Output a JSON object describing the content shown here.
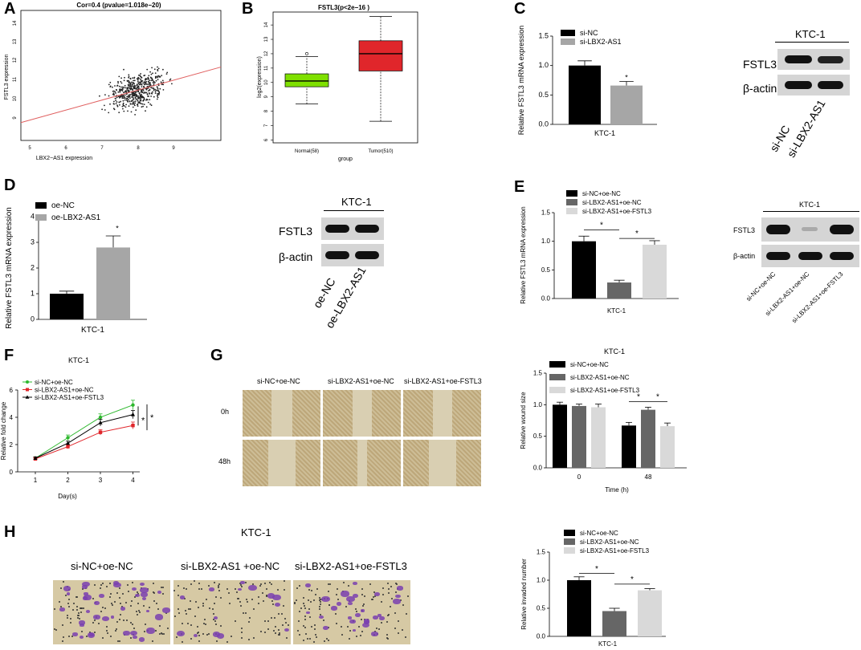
{
  "panels": {
    "A": "A",
    "B": "B",
    "C": "C",
    "D": "D",
    "E": "E",
    "F": "F",
    "G": "G",
    "H": "H"
  },
  "panelA": {
    "title": "Cor=0.4 (pvalue=1.018e−20)",
    "xlabel": "LBX2−AS1 expression",
    "ylabel": "FSTL3 expression",
    "xticks": [
      "5",
      "6",
      "7",
      "8",
      "9"
    ],
    "yticks": [
      "9",
      "10",
      "11",
      "12",
      "13",
      "14"
    ]
  },
  "panelB": {
    "title": "FSTL3(p<2e−16 )",
    "xlabel": "group",
    "ylabel": "log2(expression)",
    "xticks": [
      "Normal(58)",
      "Tumor(510)"
    ],
    "yticks": [
      "6",
      "7",
      "8",
      "9",
      "10",
      "11",
      "12",
      "13",
      "14"
    ]
  },
  "panelC": {
    "ylabel": "Relative FSTL3 mRNA expression",
    "xlabel": "KTC-1",
    "legend": [
      "si-NC",
      "si-LBX2-AS1"
    ],
    "yticks": [
      "0.0",
      "0.5",
      "1.0",
      "1.5"
    ],
    "star": "*",
    "blot": {
      "title": "KTC-1",
      "rows": [
        "FSTL3",
        "β-actin"
      ],
      "lanes": [
        "si-NC",
        "si-LBX2-AS1"
      ]
    }
  },
  "panelD": {
    "ylabel": "Relative FSTL3 mRNA expression",
    "xlabel": "KTC-1",
    "legend": [
      "oe-NC",
      "oe-LBX2-AS1"
    ],
    "yticks": [
      "0",
      "1",
      "2",
      "3",
      "4"
    ],
    "star": "*",
    "blot": {
      "title": "KTC-1",
      "rows": [
        "FSTL3",
        "β-actin"
      ],
      "lanes": [
        "oe-NC",
        "oe-LBX2-AS1"
      ]
    }
  },
  "panelE": {
    "ylabel": "Relative FSTL3 mRNA expression",
    "xlabel": "KTC-1",
    "legend": [
      "si-NC+oe-NC",
      "si-LBX2-AS1+oe-NC",
      "si-LBX2-AS1+oe-FSTL3"
    ],
    "yticks": [
      "0.0",
      "0.5",
      "1.0",
      "1.5"
    ],
    "stars": [
      "*",
      "*"
    ],
    "blot": {
      "title": "KTC-1",
      "rows": [
        "FSTL3",
        "β-actin"
      ],
      "lanes": [
        "si-NC+oe-NC",
        "si-LBX2-AS1+oe-NC",
        "si-LBX2-AS1+oe-FSTL3"
      ]
    }
  },
  "panelF": {
    "title": "KTC-1",
    "ylabel": "Relative fold change",
    "xlabel": "Day(s)",
    "legend": [
      "si-NC+oe-NC",
      "si-LBX2-AS1+oe-NC",
      "si-LBX2-AS1+oe-FSTL3"
    ],
    "xticks": [
      "1",
      "2",
      "3",
      "4"
    ],
    "yticks": [
      "0",
      "2",
      "4",
      "6"
    ],
    "stars": [
      "*",
      "*"
    ]
  },
  "panelG": {
    "columns": [
      "si-NC+oe-NC",
      "si-LBX2-AS1+oe-NC",
      "si-LBX2-AS1+oe-FSTL3"
    ],
    "rows": [
      "0h",
      "48h"
    ],
    "chart_title": "KTC-1",
    "ylabel": "Relative wound size",
    "xlabel": "Time (h)",
    "legend": [
      "si-NC+oe-NC",
      "si-LBX2-AS1+oe-NC",
      "si-LBX2-AS1+oe-FSTL3"
    ],
    "xticks": [
      "0",
      "48"
    ],
    "yticks": [
      "0.0",
      "0.5",
      "1.0",
      "1.5"
    ],
    "stars": [
      "*",
      "*"
    ]
  },
  "panelH": {
    "title": "KTC-1",
    "columns": [
      "si-NC+oe-NC",
      "si-LBX2-AS1 +oe-NC",
      "si-LBX2-AS1+oe-FSTL3"
    ],
    "ylabel": "Relative invaded number",
    "xlabel": "KTC-1",
    "legend": [
      "si-NC+oe-NC",
      "si-LBX2-AS1+oe-NC",
      "si-LBX2-AS1+oe-FSTL3"
    ],
    "yticks": [
      "0.0",
      "0.5",
      "1.0",
      "1.5"
    ],
    "stars": [
      "*",
      "*"
    ]
  },
  "colors": {
    "black": "#000000",
    "dark_gray": "#666666",
    "gray": "#a6a6a6",
    "light_gray": "#d9d9d9",
    "green": "#7fe000",
    "red": "#e0262b",
    "regression": "#e06060",
    "photo_bg": "#c9b992",
    "crystal_violet": "#7a3fb0"
  },
  "chart_data": [
    {
      "panel": "A",
      "type": "scatter",
      "title": "Cor=0.4 (pvalue=1.018e−20)",
      "xlabel": "LBX2−AS1 expression",
      "ylabel": "FSTL3 expression",
      "xlim": [
        4.3,
        9.9
      ],
      "ylim": [
        8.6,
        14.8
      ],
      "regression": {
        "x": [
          4.3,
          9.9
        ],
        "y": [
          9.45,
          12.1
        ]
      }
    },
    {
      "panel": "B",
      "type": "box",
      "title": "FSTL3(p<2e−16 )",
      "xlabel": "group",
      "ylabel": "log2(expression)",
      "categories": [
        "Normal(58)",
        "Tumor(510)"
      ],
      "ylim": [
        5.8,
        14.9
      ],
      "boxes": [
        {
          "whisker_low": 8.5,
          "q1": 9.7,
          "median": 10.1,
          "q3": 10.6,
          "whisker_high": 11.8,
          "outliers": [
            12.0
          ]
        },
        {
          "whisker_low": 7.3,
          "q1": 10.8,
          "median": 12.0,
          "q3": 12.9,
          "whisker_high": 14.6,
          "outliers": []
        }
      ]
    },
    {
      "panel": "C",
      "type": "bar",
      "categories": [
        "KTC-1"
      ],
      "series": [
        {
          "name": "si-NC",
          "values": [
            1.0
          ],
          "error": [
            0.08
          ]
        },
        {
          "name": "si-LBX2-AS1",
          "values": [
            0.66
          ],
          "error": [
            0.07
          ]
        }
      ],
      "ylim": [
        0,
        1.5
      ]
    },
    {
      "panel": "D",
      "type": "bar",
      "categories": [
        "KTC-1"
      ],
      "series": [
        {
          "name": "oe-NC",
          "values": [
            1.0
          ],
          "error": [
            0.1
          ]
        },
        {
          "name": "oe-LBX2-AS1",
          "values": [
            2.8
          ],
          "error": [
            0.45
          ]
        }
      ],
      "ylim": [
        0,
        4
      ]
    },
    {
      "panel": "E",
      "type": "bar",
      "categories": [
        "KTC-1"
      ],
      "series": [
        {
          "name": "si-NC+oe-NC",
          "values": [
            1.0
          ],
          "error": [
            0.09
          ]
        },
        {
          "name": "si-LBX2-AS1+oe-NC",
          "values": [
            0.28
          ],
          "error": [
            0.04
          ]
        },
        {
          "name": "si-LBX2-AS1+oe-FSTL3",
          "values": [
            0.94
          ],
          "error": [
            0.07
          ]
        }
      ],
      "ylim": [
        0,
        1.5
      ]
    },
    {
      "panel": "F",
      "type": "line",
      "title": "KTC-1",
      "xlabel": "Day(s)",
      "ylabel": "Relative fold change",
      "x": [
        1,
        2,
        3,
        4
      ],
      "ylim": [
        0,
        6
      ],
      "series": [
        {
          "name": "si-NC+oe-NC",
          "values": [
            1.0,
            2.5,
            4.0,
            4.9
          ],
          "error": [
            0.1,
            0.2,
            0.25,
            0.35
          ]
        },
        {
          "name": "si-LBX2-AS1+oe-NC",
          "values": [
            0.95,
            1.85,
            2.9,
            3.4
          ],
          "error": [
            0.1,
            0.15,
            0.2,
            0.25
          ]
        },
        {
          "name": "si-LBX2-AS1+oe-FSTL3",
          "values": [
            1.0,
            2.1,
            3.6,
            4.2
          ],
          "error": [
            0.1,
            0.15,
            0.25,
            0.3
          ]
        }
      ]
    },
    {
      "panel": "G",
      "type": "bar",
      "title": "KTC-1",
      "xlabel": "Time (h)",
      "ylabel": "Relative wound size",
      "categories": [
        "0",
        "48"
      ],
      "ylim": [
        0,
        1.5
      ],
      "series": [
        {
          "name": "si-NC+oe-NC",
          "values": [
            1.0,
            0.67
          ],
          "error": [
            0.04,
            0.05
          ]
        },
        {
          "name": "si-LBX2-AS1+oe-NC",
          "values": [
            0.98,
            0.92
          ],
          "error": [
            0.03,
            0.04
          ]
        },
        {
          "name": "si-LBX2-AS1+oe-FSTL3",
          "values": [
            0.96,
            0.66
          ],
          "error": [
            0.05,
            0.05
          ]
        }
      ]
    },
    {
      "panel": "H",
      "type": "bar",
      "xlabel": "KTC-1",
      "ylabel": "Relative invaded number",
      "categories": [
        "KTC-1"
      ],
      "ylim": [
        0,
        1.5
      ],
      "series": [
        {
          "name": "si-NC+oe-NC",
          "values": [
            1.0
          ],
          "error": [
            0.06
          ]
        },
        {
          "name": "si-LBX2-AS1+oe-NC",
          "values": [
            0.45
          ],
          "error": [
            0.05
          ]
        },
        {
          "name": "si-LBX2-AS1+oe-FSTL3",
          "values": [
            0.82
          ],
          "error": [
            0.03
          ]
        }
      ]
    }
  ]
}
